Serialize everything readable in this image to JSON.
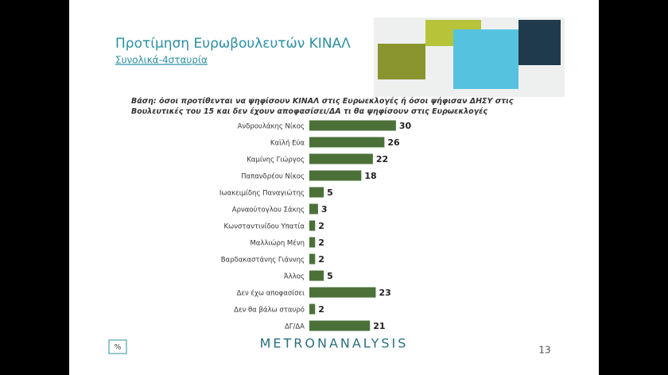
{
  "chart_data": {
    "type": "bar",
    "orientation": "horizontal",
    "title": "Προτίμηση Ευρωβουλευτών ΚΙΝΑΛ",
    "subtitle": "Συνολικά-4σταυρία",
    "note": "Βάση: όσοι προτίθενται να ψηφίσουν ΚΙΝΑΛ στις Ευρωεκλογές ή όσοι ψήφισαν ΔΗΣΥ στις Βουλευτικές του 15 και δεν έχουν αποφασίσει/ΔΑ τι θα ψηφίσουν στις Ευρωεκλογές",
    "categories": [
      "Ανδρουλάκης Νίκος",
      "Καϊλή Εύα",
      "Καμίνης Γιώργος",
      "Παπανδρέου Νίκος",
      "Ιωακειμίδης Παναγιώτης",
      "Αρναούτογλου Σάκης",
      "Κωνσταντινίδου Υπατία",
      "Μαλλιώρη Μένη",
      "Βαρδακαστάνης Γιάννης",
      "Άλλος",
      "Δεν έχω αποφασίσει",
      "Δεν θα βάλω σταυρό",
      "ΔΓ/ΔΑ"
    ],
    "values": [
      30,
      26,
      22,
      18,
      5,
      3,
      2,
      2,
      2,
      5,
      23,
      2,
      21
    ],
    "color": "#4b7139",
    "unit": "%"
  },
  "footer": {
    "logo": "METRONANALYSIS",
    "page": 13
  }
}
